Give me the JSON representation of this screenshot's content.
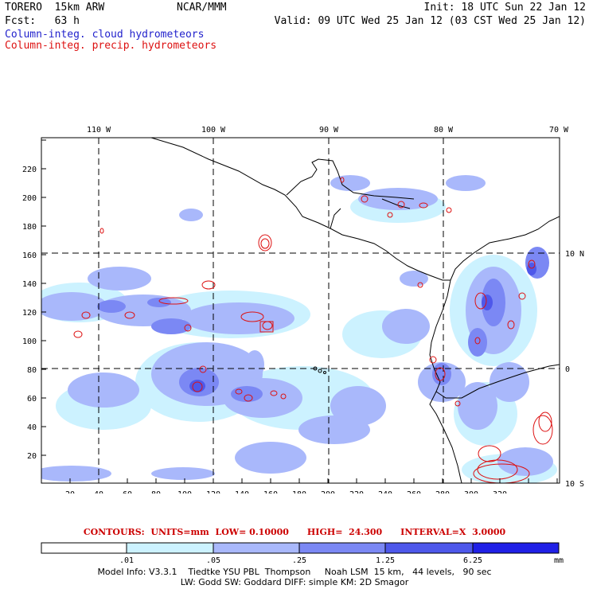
{
  "header": {
    "model": "TORERO  15km ARW",
    "center": "NCAR/MMM",
    "init": "Init: 18 UTC Sun 22 Jan 12",
    "fcst": "Fcst:   63 h",
    "valid": "Valid: 09 UTC Wed 25 Jan 12 (03 CST Wed 25 Jan 12)",
    "field_cloud": "Column-integ. cloud hydrometeors",
    "field_precip": "Column-integ. precip. hydrometeors"
  },
  "colors": {
    "cloud_label": "#2222cc",
    "precip_label": "#dd1111",
    "shade_1": "#ccf2ff",
    "shade_2": "#a9b8fb",
    "shade_3": "#7b88f4",
    "shade_4": "#4e58ea",
    "shade_5": "#2020e6",
    "contour": "#dd1111"
  },
  "map": {
    "lon_labels_top": [
      "110 W",
      "100 W",
      "90 W",
      "80 W",
      "70 W"
    ],
    "lat_labels_right": [
      "10 N",
      "0",
      "10 S"
    ],
    "x_ticks": [
      "20",
      "40",
      "60",
      "80",
      "100",
      "120",
      "140",
      "160",
      "180",
      "200",
      "220",
      "240",
      "260",
      "280",
      "300",
      "320"
    ],
    "y_ticks": [
      "20",
      "40",
      "60",
      "80",
      "100",
      "120",
      "140",
      "160",
      "180",
      "200",
      "220"
    ]
  },
  "contours": {
    "text": "CONTOURS:  UNITS=mm  LOW= 0.10000      HIGH=  24.300      INTERVAL=X  3.0000"
  },
  "colorbar": {
    "labels": [
      ".01",
      ".05",
      ".25",
      "1.25",
      "6.25"
    ],
    "unit": "mm"
  },
  "model_info": {
    "line1": "Model Info: V3.3.1    Tiedtke YSU PBL  Thompson     Noah LSM  15 km,   44 levels,   90 sec",
    "line2": "LW: Godd SW: Goddard DIFF: simple KM: 2D Smagor"
  }
}
